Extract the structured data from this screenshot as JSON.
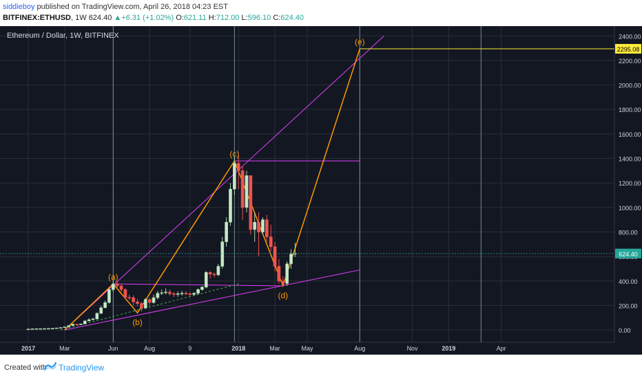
{
  "header": {
    "user": "siddieboy",
    "published_text": "published on TradingView.com, April 26, 2018 04:23 EST",
    "symbol": "BITFINEX:ETHUSD",
    "interval": "1W",
    "last_price": "624.40",
    "change": "+6.31 (+1.02%)",
    "ohlc": [
      {
        "label": "O:",
        "value": "621.11"
      },
      {
        "label": "H:",
        "value": "712.00"
      },
      {
        "label": "L:",
        "value": "596.10"
      },
      {
        "label": "C:",
        "value": "624.40"
      }
    ]
  },
  "footer": {
    "created_with": "Created with",
    "brand": "TradingView"
  },
  "chart_data": {
    "type": "candlestick",
    "title": "Ethereum / Dollar, 1W, BITFINEX",
    "ylim": [
      -100,
      2480
    ],
    "y_ticks": [
      "2400.00",
      "2200.00",
      "2000.00",
      "1800.00",
      "1600.00",
      "1400.00",
      "1200.00",
      "1000.00",
      "800.00",
      "600.00",
      "400.00",
      "200.00",
      "0.00"
    ],
    "y_tick_values": [
      2400,
      2200,
      2000,
      1800,
      1600,
      1400,
      1200,
      1000,
      800,
      600,
      400,
      200,
      0
    ],
    "x_index_range": [
      -7,
      145
    ],
    "x_ticks": [
      {
        "label": "2017",
        "i": 0
      },
      {
        "label": "Mar",
        "i": 9
      },
      {
        "label": "Jun",
        "i": 21
      },
      {
        "label": "Aug",
        "i": 30
      },
      {
        "label": "9",
        "i": 40
      },
      {
        "label": "2018",
        "i": 52
      },
      {
        "label": "Mar",
        "i": 61
      },
      {
        "label": "May",
        "i": 69
      },
      {
        "label": "Aug",
        "i": 82
      },
      {
        "label": "Nov",
        "i": 95
      },
      {
        "label": "2019",
        "i": 104
      },
      {
        "label": "Apr",
        "i": 117
      }
    ],
    "price_labels": [
      {
        "value": 2295.08,
        "text": "2295.08",
        "color": "#ffeb3b"
      },
      {
        "value": 624.4,
        "text": "624.40",
        "color": "#26a69a"
      }
    ],
    "candles": [
      [
        0,
        8,
        8,
        10,
        6
      ],
      [
        1,
        8,
        10,
        12,
        7
      ],
      [
        2,
        10,
        11,
        13,
        9
      ],
      [
        3,
        11,
        11,
        13,
        10
      ],
      [
        4,
        11,
        12,
        14,
        10
      ],
      [
        5,
        12,
        13,
        15,
        11
      ],
      [
        6,
        13,
        14,
        16,
        12
      ],
      [
        7,
        14,
        17,
        18,
        13
      ],
      [
        8,
        17,
        20,
        22,
        16
      ],
      [
        9,
        20,
        26,
        28,
        19
      ],
      [
        10,
        26,
        36,
        39,
        24
      ],
      [
        11,
        36,
        48,
        52,
        34
      ],
      [
        12,
        48,
        44,
        50,
        40
      ],
      [
        13,
        44,
        49,
        52,
        42
      ],
      [
        14,
        49,
        74,
        80,
        48
      ],
      [
        15,
        74,
        84,
        96,
        70
      ],
      [
        16,
        84,
        90,
        102,
        80
      ],
      [
        17,
        90,
        136,
        143,
        86
      ],
      [
        18,
        136,
        182,
        196,
        130
      ],
      [
        19,
        182,
        224,
        240,
        176
      ],
      [
        20,
        224,
        330,
        350,
        216
      ],
      [
        21,
        330,
        376,
        420,
        310
      ],
      [
        22,
        376,
        360,
        396,
        330
      ],
      [
        23,
        360,
        330,
        370,
        310
      ],
      [
        24,
        330,
        266,
        340,
        250
      ],
      [
        25,
        266,
        264,
        290,
        244
      ],
      [
        26,
        264,
        230,
        284,
        200
      ],
      [
        27,
        230,
        216,
        252,
        196
      ],
      [
        28,
        216,
        180,
        230,
        150
      ],
      [
        29,
        180,
        250,
        260,
        170
      ],
      [
        30,
        250,
        224,
        262,
        200
      ],
      [
        31,
        224,
        264,
        290,
        216
      ],
      [
        32,
        264,
        300,
        320,
        250
      ],
      [
        33,
        300,
        304,
        330,
        286
      ],
      [
        34,
        304,
        310,
        340,
        290
      ],
      [
        35,
        310,
        296,
        330,
        280
      ],
      [
        36,
        296,
        290,
        310,
        270
      ],
      [
        37,
        290,
        296,
        316,
        272
      ],
      [
        38,
        296,
        300,
        320,
        280
      ],
      [
        39,
        300,
        296,
        316,
        284
      ],
      [
        40,
        296,
        290,
        306,
        276
      ],
      [
        41,
        290,
        300,
        310,
        280
      ],
      [
        42,
        300,
        330,
        340,
        286
      ],
      [
        43,
        330,
        350,
        360,
        320
      ],
      [
        44,
        350,
        470,
        480,
        340
      ],
      [
        45,
        470,
        456,
        480,
        420
      ],
      [
        46,
        456,
        450,
        470,
        430
      ],
      [
        47,
        450,
        520,
        540,
        440
      ],
      [
        48,
        520,
        720,
        760,
        500
      ],
      [
        49,
        720,
        880,
        920,
        680
      ],
      [
        50,
        880,
        1150,
        1200,
        850
      ],
      [
        51,
        1150,
        1360,
        1420,
        1100
      ],
      [
        52,
        1360,
        1300,
        1420,
        1150
      ],
      [
        53,
        1300,
        1000,
        1340,
        900
      ],
      [
        54,
        1000,
        1260,
        1300,
        960
      ],
      [
        55,
        1260,
        820,
        1260,
        780
      ],
      [
        56,
        820,
        880,
        960,
        720
      ],
      [
        57,
        880,
        800,
        960,
        600
      ],
      [
        58,
        800,
        900,
        920,
        780
      ],
      [
        59,
        900,
        760,
        940,
        720
      ],
      [
        60,
        760,
        680,
        860,
        640
      ],
      [
        61,
        680,
        520,
        720,
        480
      ],
      [
        62,
        520,
        400,
        580,
        380
      ],
      [
        63,
        400,
        380,
        440,
        360
      ],
      [
        64,
        380,
        540,
        560,
        360
      ],
      [
        65,
        540,
        620,
        660,
        500
      ],
      [
        66,
        621,
        624,
        712,
        596
      ]
    ],
    "wave_points": [
      {
        "label": "(a)",
        "i": 21,
        "p": 376
      },
      {
        "label": "(b)",
        "i": 27,
        "p": 140
      },
      {
        "label": "(c)",
        "i": 51,
        "p": 1380
      },
      {
        "label": "(d)",
        "i": 63,
        "p": 360
      },
      {
        "label": "(e)",
        "i": 82,
        "p": 2295
      }
    ]
  }
}
